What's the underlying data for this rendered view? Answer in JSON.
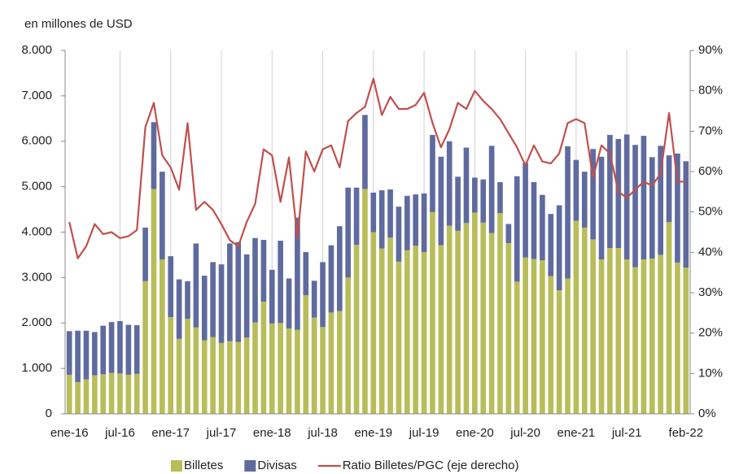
{
  "chart_data": {
    "type": "bar",
    "y_label": "en millones de USD",
    "categories": [
      "ene-16",
      null,
      null,
      null,
      null,
      null,
      "jul-16",
      null,
      null,
      null,
      null,
      null,
      "ene-17",
      null,
      null,
      null,
      null,
      null,
      "jul-17",
      null,
      null,
      null,
      null,
      null,
      "ene-18",
      null,
      null,
      null,
      null,
      null,
      "jul-18",
      null,
      null,
      null,
      null,
      null,
      "ene-19",
      null,
      null,
      null,
      null,
      null,
      "jul-19",
      null,
      null,
      null,
      null,
      null,
      "ene-20",
      null,
      null,
      null,
      null,
      null,
      "jul-20",
      null,
      null,
      null,
      null,
      null,
      "ene-21",
      null,
      null,
      null,
      null,
      null,
      "jul-21",
      null,
      null,
      null,
      null,
      null,
      null,
      "feb-22"
    ],
    "series": [
      {
        "name": "Billetes",
        "color": "#b8bd5a",
        "values": [
          860,
          700,
          760,
          850,
          870,
          900,
          890,
          860,
          880,
          2920,
          4950,
          3400,
          2130,
          1650,
          2090,
          1900,
          1620,
          1690,
          1560,
          1600,
          1580,
          1680,
          2010,
          2470,
          1990,
          2000,
          1880,
          1850,
          2610,
          2120,
          1910,
          2230,
          2260,
          3000,
          3720,
          4950,
          4000,
          3640,
          3880,
          3350,
          3600,
          3700,
          3560,
          4440,
          3710,
          4140,
          4030,
          4200,
          4430,
          4210,
          3980,
          4420,
          3760,
          2910,
          3440,
          3410,
          3380,
          3030,
          2720,
          2980,
          4250,
          4100,
          3840,
          3400,
          3650,
          3650,
          3400,
          3230,
          3400,
          3420,
          3500,
          4220,
          3330,
          3220
        ]
      },
      {
        "name": "Divisas",
        "color": "#5f6b9f",
        "values": [
          960,
          1130,
          1070,
          950,
          1070,
          1120,
          1150,
          1100,
          1070,
          1180,
          1470,
          1930,
          1340,
          1310,
          830,
          1850,
          1420,
          1650,
          1730,
          2150,
          2200,
          1830,
          1860,
          1360,
          1180,
          1810,
          1100,
          2470,
          950,
          810,
          1430,
          1480,
          1870,
          1980,
          1260,
          1630,
          870,
          1280,
          1060,
          1210,
          1200,
          1130,
          1290,
          1700,
          1950,
          1860,
          1190,
          1660,
          770,
          950,
          1920,
          680,
          420,
          2320,
          2080,
          1690,
          1440,
          1370,
          1870,
          2910,
          1340,
          1230,
          1990,
          2260,
          2490,
          2400,
          2750,
          2690,
          2720,
          2230,
          2400,
          1470,
          2400,
          2340
        ]
      },
      {
        "name": "Ratio Billetes/PGC (eje derecho)",
        "color": "#c0504d",
        "type": "line",
        "axis": "y2",
        "values": [
          47.5,
          38.5,
          41.5,
          47,
          44.5,
          45,
          43.5,
          44,
          45.5,
          71,
          77,
          64,
          61,
          55.5,
          72,
          50.5,
          52.5,
          50.5,
          47,
          43,
          41.5,
          47.5,
          52,
          65.5,
          64,
          52.5,
          63.5,
          43.5,
          65,
          60,
          65.5,
          66.5,
          61,
          72.5,
          74.5,
          76,
          83,
          74,
          78.5,
          75.5,
          75.5,
          76.5,
          79.5,
          72,
          66,
          70.5,
          77,
          75.5,
          80,
          77.5,
          75.5,
          73,
          69.5,
          66,
          61.5,
          66.5,
          62.5,
          62,
          64.5,
          72,
          73,
          72,
          58.5,
          66.5,
          64.5,
          55,
          53.5,
          55.5,
          57.5,
          56.5,
          59.5,
          74.5,
          57.5,
          57.5
        ]
      }
    ],
    "stacked": true,
    "ylim": [
      0,
      8000
    ],
    "yticks": [
      0,
      {
        "value": 1000,
        "label": "1.000"
      },
      {
        "value": 2000,
        "label": "2.000"
      },
      {
        "value": 3000,
        "label": "3.000"
      },
      {
        "value": 4000,
        "label": "4.000"
      },
      {
        "value": 5000,
        "label": "5.000"
      },
      {
        "value": 6000,
        "label": "6.000"
      },
      {
        "value": 7000,
        "label": "7.000"
      },
      {
        "value": 8000,
        "label": "8.000"
      }
    ],
    "y2lim": [
      0,
      90
    ],
    "y2ticks": [
      {
        "value": 0,
        "label": "0%"
      },
      {
        "value": 10,
        "label": "10%"
      },
      {
        "value": 20,
        "label": "20%"
      },
      {
        "value": 30,
        "label": "30%"
      },
      {
        "value": 40,
        "label": "40%"
      },
      {
        "value": 50,
        "label": "50%"
      },
      {
        "value": 60,
        "label": "60%"
      },
      {
        "value": 70,
        "label": "70%"
      },
      {
        "value": 80,
        "label": "80%"
      },
      {
        "value": 90,
        "label": "90%"
      }
    ],
    "grid": true,
    "legend": "bottom"
  }
}
